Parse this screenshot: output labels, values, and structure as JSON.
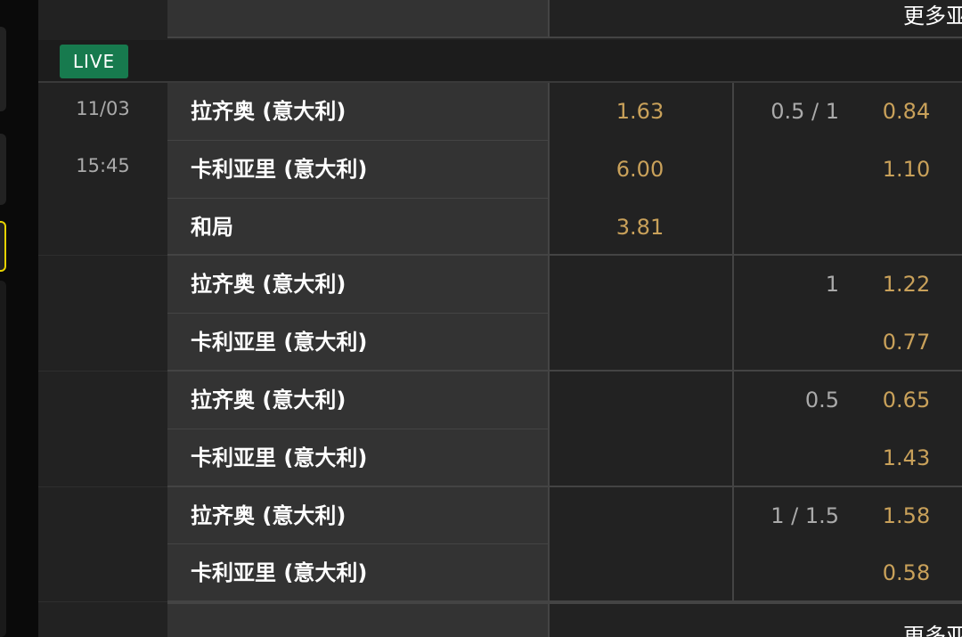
{
  "top_more": "更多亚",
  "live": "LIVE",
  "match": {
    "date": "11/03",
    "time": "15:45"
  },
  "groups": [
    {
      "rows": [
        {
          "team": "拉齐奥 (意大利)",
          "odds": "1.63",
          "line": "0.5 / 1",
          "line_odds": "0.84"
        },
        {
          "team": "卡利亚里 (意大利)",
          "odds": "6.00",
          "line_odds": "1.10"
        },
        {
          "team": "和局",
          "odds": "3.81"
        }
      ]
    },
    {
      "rows": [
        {
          "team": "拉齐奥 (意大利)",
          "line": "1",
          "line_odds": "1.22"
        },
        {
          "team": "卡利亚里 (意大利)",
          "line_odds": "0.77"
        }
      ]
    },
    {
      "rows": [
        {
          "team": "拉齐奥 (意大利)",
          "line": "0.5",
          "line_odds": "0.65"
        },
        {
          "team": "卡利亚里 (意大利)",
          "line_odds": "1.43"
        }
      ]
    },
    {
      "rows": [
        {
          "team": "拉齐奥 (意大利)",
          "line": "1 / 1.5",
          "line_odds": "1.58"
        },
        {
          "team": "卡利亚里 (意大利)",
          "line_odds": "0.58"
        }
      ]
    }
  ],
  "bottom_more": "更多亚"
}
